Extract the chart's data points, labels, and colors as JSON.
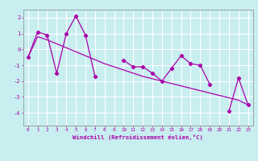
{
  "xlabel": "Windchill (Refroidissement éolien,°C)",
  "x_data": [
    0,
    1,
    2,
    3,
    4,
    5,
    6,
    7,
    8,
    9,
    10,
    11,
    12,
    13,
    14,
    15,
    16,
    17,
    18,
    19,
    20,
    21,
    22,
    23
  ],
  "y_main": [
    -0.5,
    1.1,
    0.9,
    -1.5,
    1.0,
    2.1,
    0.9,
    -1.7,
    null,
    null,
    -0.7,
    -1.1,
    -1.1,
    -1.5,
    -2.0,
    -1.2,
    -0.4,
    -0.9,
    -1.0,
    -2.2,
    null,
    -3.9,
    -1.8,
    -3.5
  ],
  "y_trend": [
    -0.5,
    0.8,
    0.6,
    0.35,
    0.1,
    -0.15,
    -0.4,
    -0.65,
    -0.9,
    -1.1,
    -1.3,
    -1.5,
    -1.7,
    -1.85,
    -2.0,
    -2.15,
    -2.3,
    -2.45,
    -2.6,
    -2.75,
    -2.9,
    -3.05,
    -3.2,
    -3.5
  ],
  "line_color": "#aa00aa",
  "background_color": "#c8eef0",
  "grid_color": "#ffffff",
  "ylim": [
    -4.8,
    2.5
  ],
  "xlim": [
    -0.5,
    23.5
  ],
  "yticks": [
    -4,
    -3,
    -2,
    -1,
    0,
    1,
    2
  ],
  "xticks": [
    0,
    1,
    2,
    3,
    4,
    5,
    6,
    7,
    8,
    9,
    10,
    11,
    12,
    13,
    14,
    15,
    16,
    17,
    18,
    19,
    20,
    21,
    22,
    23
  ]
}
